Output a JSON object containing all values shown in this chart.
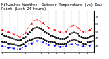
{
  "title": "Milwaukee Weather  Outdoor Temperature (vs) Dew Point (Last 24 Hours)",
  "temp_color": "#ff0000",
  "dew_color": "#0000ff",
  "dot_color_hi": "#000000",
  "dot_color_lo": "#000000",
  "bg_color": "#ffffff",
  "grid_color": "#888888",
  "ylim": [
    22,
    78
  ],
  "yticks": [
    30,
    40,
    50,
    60,
    70
  ],
  "ytick_labels": [
    "30",
    "40",
    "50",
    "60",
    "70"
  ],
  "num_points": 48,
  "temp_values": [
    52,
    51,
    50,
    49,
    48,
    47,
    46,
    45,
    44,
    43,
    44,
    46,
    48,
    52,
    56,
    60,
    63,
    65,
    66,
    65,
    63,
    61,
    59,
    57,
    55,
    54,
    53,
    52,
    51,
    50,
    49,
    48,
    48,
    50,
    52,
    55,
    57,
    58,
    57,
    55,
    53,
    51,
    50,
    49,
    50,
    52,
    53,
    54
  ],
  "dew_values": [
    30,
    29,
    29,
    28,
    28,
    27,
    27,
    27,
    26,
    26,
    27,
    28,
    30,
    32,
    33,
    34,
    35,
    36,
    37,
    37,
    36,
    35,
    34,
    33,
    32,
    32,
    31,
    31,
    30,
    30,
    29,
    29,
    29,
    30,
    31,
    32,
    33,
    34,
    33,
    32,
    31,
    30,
    30,
    29,
    30,
    31,
    31,
    32
  ],
  "black_hi": [
    46,
    45,
    44,
    43,
    42,
    41,
    40,
    39,
    38,
    38,
    39,
    41,
    43,
    46,
    49,
    52,
    54,
    55,
    56,
    55,
    54,
    52,
    50,
    48,
    46,
    45,
    44,
    43,
    42,
    41,
    40,
    40,
    40,
    41,
    43,
    46,
    48,
    49,
    48,
    47,
    45,
    43,
    42,
    41,
    42,
    43,
    44,
    45
  ],
  "black_lo": [
    36,
    35,
    35,
    34,
    34,
    33,
    33,
    32,
    31,
    31,
    32,
    33,
    35,
    37,
    38,
    39,
    40,
    41,
    42,
    42,
    41,
    40,
    38,
    37,
    36,
    36,
    35,
    35,
    34,
    34,
    33,
    33,
    33,
    34,
    35,
    37,
    38,
    39,
    38,
    37,
    36,
    35,
    34,
    33,
    35,
    36,
    36,
    37
  ],
  "title_fontsize": 3.8,
  "tick_fontsize": 3.0,
  "figsize": [
    1.6,
    0.87
  ],
  "dpi": 100
}
